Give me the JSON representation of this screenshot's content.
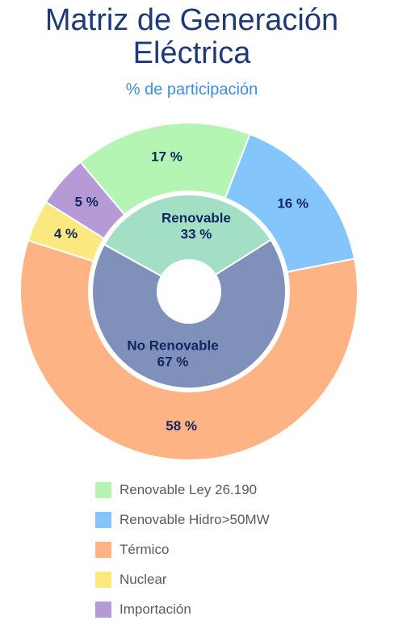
{
  "chart_data": {
    "type": "pie",
    "title_line1": "Matriz de Generación",
    "title_line2": "Eléctrica",
    "subtitle": "% de participación",
    "outer": {
      "categories": [
        "Renovable Ley 26.190",
        "Renovable Hidro>50MW",
        "Térmico",
        "Nuclear",
        "Importación"
      ],
      "values": [
        17,
        16,
        58,
        4,
        5
      ],
      "labels": [
        "17 %",
        "16 %",
        "58 %",
        "4 %",
        "5 %"
      ],
      "colors": [
        "#b5f5b3",
        "#84c6fb",
        "#fdb383",
        "#fbe97f",
        "#b59ad6"
      ]
    },
    "inner": {
      "categories": [
        "Renovable",
        "No Renovable"
      ],
      "values": [
        33,
        67
      ],
      "labels": [
        "33 %",
        "67 %"
      ],
      "colors": [
        "#a3dfc5",
        "#7f91bb"
      ]
    },
    "legend": {
      "position": "bottom",
      "items": [
        "Renovable Ley 26.190",
        "Renovable Hidro>50MW",
        "Térmico",
        "Nuclear",
        "Importación"
      ],
      "colors": [
        "#b5f5b3",
        "#84c6fb",
        "#fdb383",
        "#fbe97f",
        "#b59ad6"
      ]
    }
  }
}
